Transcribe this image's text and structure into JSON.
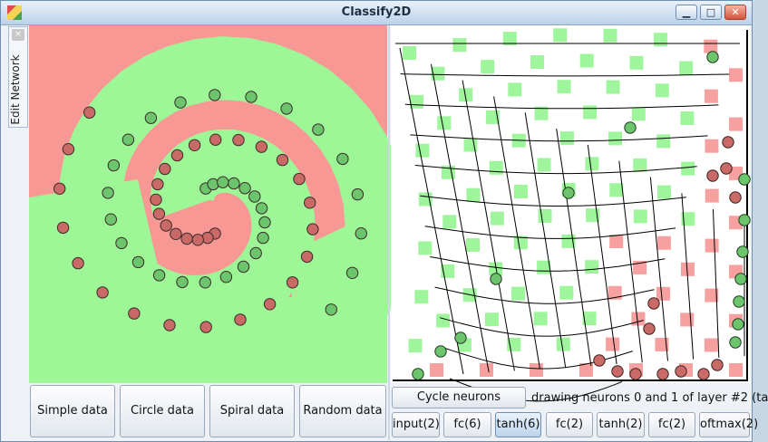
{
  "window": {
    "title": "Classify2D"
  },
  "sidebar": {
    "tab_label": "Edit Network",
    "close_glyph": "×"
  },
  "data_buttons": [
    {
      "label": "Simple data"
    },
    {
      "label": "Circle data"
    },
    {
      "label": "Spiral data"
    },
    {
      "label": "Random data"
    }
  ],
  "cycle_button": {
    "label": "Cycle neurons"
  },
  "status_text": "drawing neurons 0 and 1 of layer #2 (ta",
  "layers": [
    {
      "label": "input(2)",
      "active": false
    },
    {
      "label": "fc(6)",
      "active": false
    },
    {
      "label": "tanh(6)",
      "active": true
    },
    {
      "label": "fc(2)",
      "active": false
    },
    {
      "label": "tanh(2)",
      "active": false
    },
    {
      "label": "fc(2)",
      "active": false
    },
    {
      "label": "oftmax(2)",
      "active": false
    }
  ],
  "colors": {
    "red_region": "#f79895",
    "green_region": "#9ef796",
    "red_point": "#c96a66",
    "green_point": "#6cc46c",
    "grid_red": "#f7a0a0",
    "grid_green": "#9ff59c"
  },
  "icons": {
    "minimize": "minimize-icon",
    "maximize": "maximize-icon",
    "close": "close-icon",
    "app": "app-icon"
  }
}
